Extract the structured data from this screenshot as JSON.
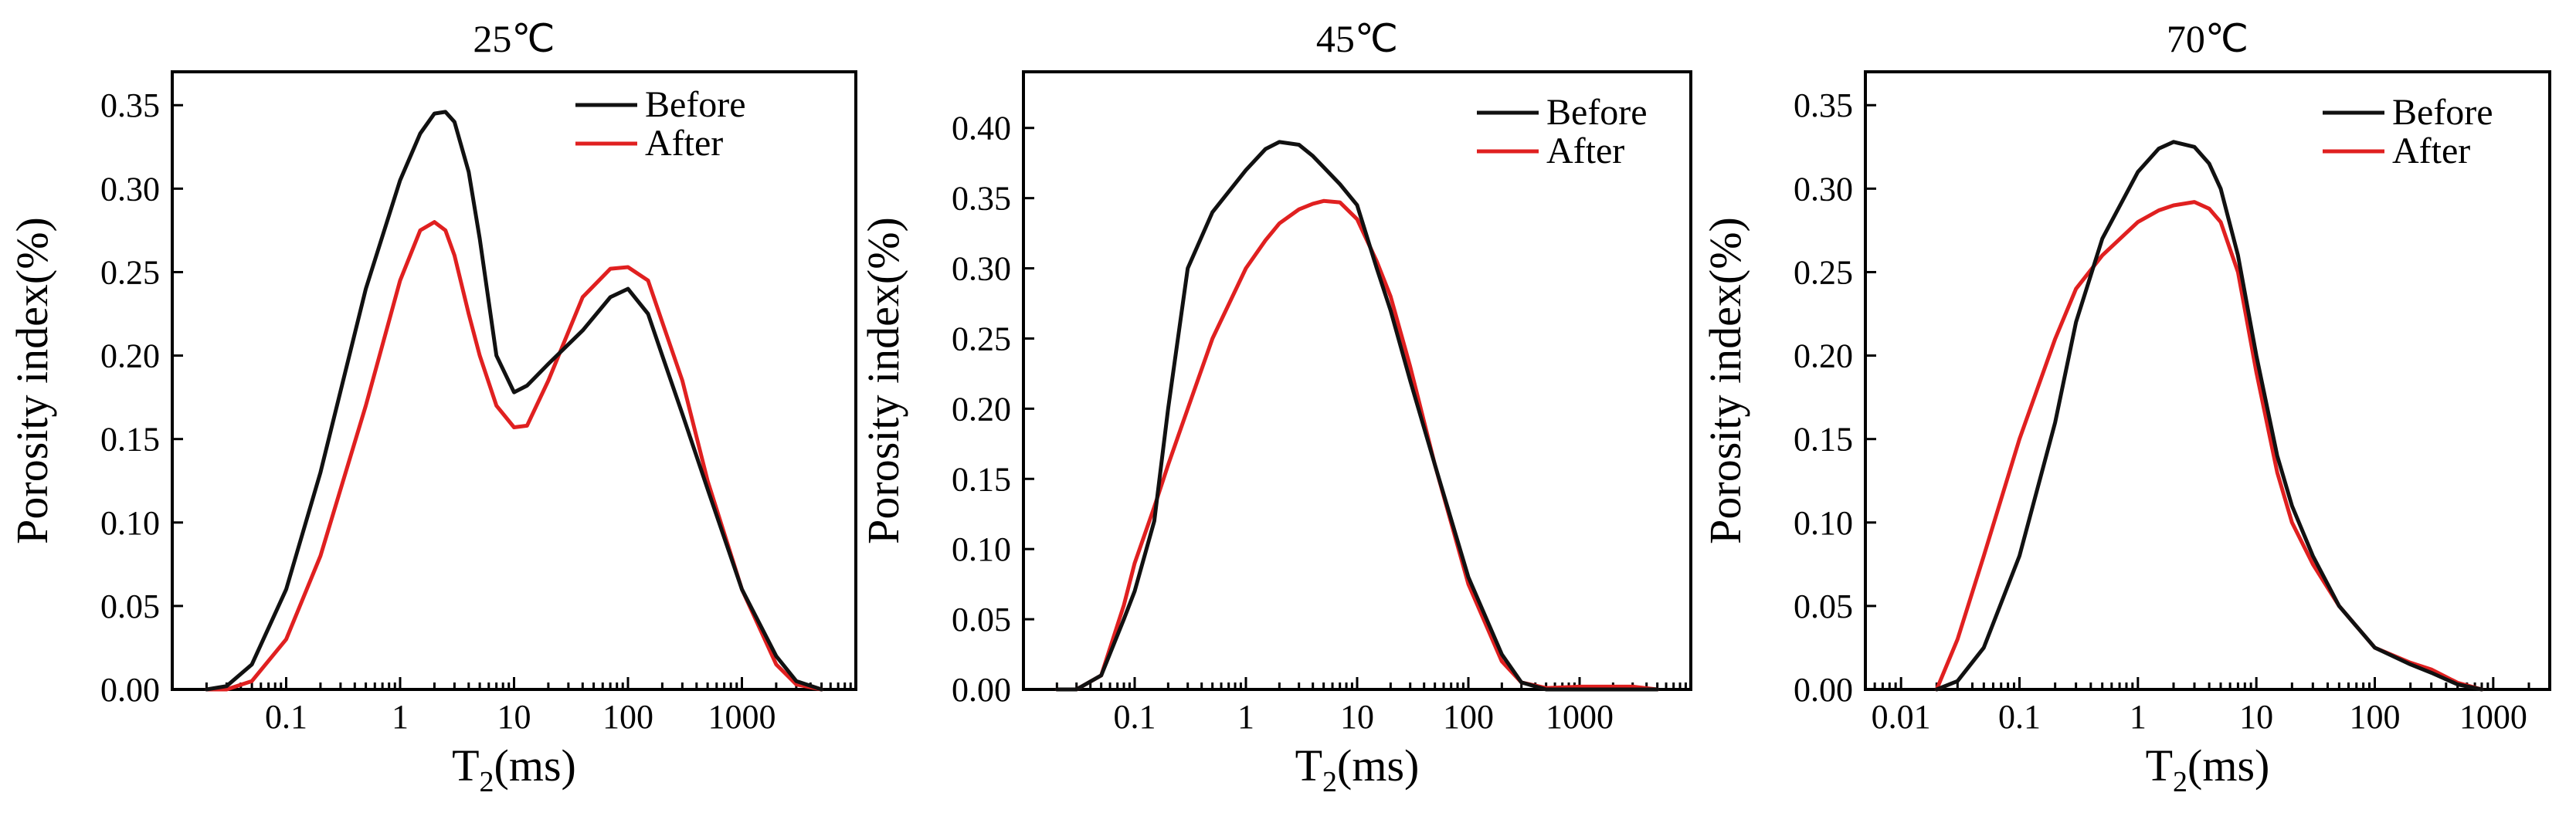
{
  "chart_data": [
    {
      "type": "line",
      "title": "25℃",
      "xlabel": {
        "main": "T",
        "sub": "2",
        "rest": "(ms)"
      },
      "ylabel": "Porosity index(%)",
      "xscale": "log",
      "xlim": [
        0.01,
        10000
      ],
      "ylim": [
        0,
        0.37
      ],
      "xticks": [
        0.1,
        1,
        10,
        100,
        1000
      ],
      "xtick_labels": [
        "0.1",
        "1",
        "10",
        "100",
        "1000"
      ],
      "yticks": [
        0,
        0.05,
        0.1,
        0.15,
        0.2,
        0.25,
        0.3,
        0.35
      ],
      "ytick_labels": [
        "0.00",
        "0.05",
        "0.10",
        "0.15",
        "0.20",
        "0.25",
        "0.30",
        "0.35"
      ],
      "legend": "top-right",
      "colors": {
        "Before": "#111111",
        "After": "#e02020"
      },
      "series": [
        {
          "name": "Before",
          "x": [
            0.02,
            0.03,
            0.05,
            0.1,
            0.2,
            0.5,
            1,
            1.5,
            2,
            2.5,
            3,
            4,
            5,
            7,
            10,
            13,
            20,
            40,
            70,
            100,
            150,
            200,
            300,
            500,
            1000,
            2000,
            3000,
            5000
          ],
          "y": [
            0,
            0.002,
            0.015,
            0.06,
            0.13,
            0.24,
            0.305,
            0.333,
            0.345,
            0.346,
            0.34,
            0.31,
            0.27,
            0.2,
            0.178,
            0.182,
            0.195,
            0.215,
            0.235,
            0.24,
            0.225,
            0.2,
            0.165,
            0.12,
            0.06,
            0.02,
            0.005,
            0
          ]
        },
        {
          "name": "After",
          "x": [
            0.02,
            0.03,
            0.05,
            0.1,
            0.2,
            0.5,
            1,
            1.5,
            2,
            2.5,
            3,
            4,
            5,
            7,
            10,
            13,
            20,
            40,
            70,
            100,
            150,
            200,
            300,
            500,
            1000,
            2000,
            3000,
            5000
          ],
          "y": [
            0,
            0,
            0.005,
            0.03,
            0.08,
            0.17,
            0.245,
            0.275,
            0.28,
            0.275,
            0.26,
            0.225,
            0.2,
            0.17,
            0.157,
            0.158,
            0.185,
            0.235,
            0.252,
            0.253,
            0.245,
            0.22,
            0.185,
            0.125,
            0.06,
            0.015,
            0.003,
            0
          ]
        }
      ]
    },
    {
      "type": "line",
      "title": "45℃",
      "xlabel": {
        "main": "T",
        "sub": "2",
        "rest": "(ms)"
      },
      "ylabel": "Porosity index(%)",
      "xscale": "log",
      "xlim": [
        0.01,
        10000
      ],
      "ylim": [
        0,
        0.44
      ],
      "xticks": [
        0.1,
        1,
        10,
        100,
        1000
      ],
      "xtick_labels": [
        "0.1",
        "1",
        "10",
        "100",
        "1000"
      ],
      "yticks": [
        0,
        0.05,
        0.1,
        0.15,
        0.2,
        0.25,
        0.3,
        0.35,
        0.4
      ],
      "ytick_labels": [
        "0.00",
        "0.05",
        "0.10",
        "0.15",
        "0.20",
        "0.25",
        "0.30",
        "0.35",
        "0.40"
      ],
      "legend": "top-right",
      "colors": {
        "Before": "#111111",
        "After": "#e02020"
      },
      "series": [
        {
          "name": "Before",
          "x": [
            0.02,
            0.03,
            0.05,
            0.08,
            0.1,
            0.15,
            0.2,
            0.3,
            0.5,
            1,
            1.5,
            2,
            3,
            4,
            5,
            7,
            10,
            15,
            20,
            30,
            50,
            100,
            200,
            300,
            500,
            1000,
            3000,
            5000
          ],
          "y": [
            0,
            0,
            0.01,
            0.05,
            0.07,
            0.12,
            0.2,
            0.3,
            0.34,
            0.37,
            0.385,
            0.39,
            0.388,
            0.38,
            0.372,
            0.36,
            0.345,
            0.3,
            0.27,
            0.22,
            0.16,
            0.08,
            0.025,
            0.005,
            0,
            0,
            0,
            0
          ]
        },
        {
          "name": "After",
          "x": [
            0.02,
            0.03,
            0.05,
            0.08,
            0.1,
            0.15,
            0.2,
            0.3,
            0.5,
            1,
            1.5,
            2,
            3,
            4,
            5,
            7,
            10,
            15,
            20,
            30,
            50,
            100,
            200,
            300,
            500,
            1000,
            3000,
            5000
          ],
          "y": [
            0,
            0,
            0.01,
            0.06,
            0.09,
            0.13,
            0.16,
            0.2,
            0.25,
            0.3,
            0.32,
            0.332,
            0.342,
            0.346,
            0.348,
            0.347,
            0.335,
            0.305,
            0.28,
            0.23,
            0.16,
            0.075,
            0.02,
            0.005,
            0.001,
            0.002,
            0.002,
            0
          ]
        }
      ]
    },
    {
      "type": "line",
      "title": "70℃",
      "xlabel": {
        "main": "T",
        "sub": "2",
        "rest": "(ms)"
      },
      "ylabel": "Porosity index(%)",
      "xscale": "log",
      "xlim": [
        0.005,
        3000
      ],
      "ylim": [
        0,
        0.37
      ],
      "xticks": [
        0.01,
        0.1,
        1,
        10,
        100,
        1000
      ],
      "xtick_labels": [
        "0.01",
        "0.1",
        "1",
        "10",
        "100",
        "1000"
      ],
      "yticks": [
        0,
        0.05,
        0.1,
        0.15,
        0.2,
        0.25,
        0.3,
        0.35
      ],
      "ytick_labels": [
        "0.00",
        "0.05",
        "0.10",
        "0.15",
        "0.20",
        "0.25",
        "0.30",
        "0.35"
      ],
      "legend": "top-right",
      "colors": {
        "Before": "#111111",
        "After": "#e02020"
      },
      "series": [
        {
          "name": "Before",
          "x": [
            0.02,
            0.03,
            0.05,
            0.1,
            0.2,
            0.3,
            0.5,
            1,
            1.5,
            2,
            3,
            4,
            5,
            7,
            10,
            15,
            20,
            30,
            50,
            100,
            200,
            300,
            500,
            800
          ],
          "y": [
            0,
            0.005,
            0.025,
            0.08,
            0.16,
            0.22,
            0.27,
            0.31,
            0.324,
            0.328,
            0.325,
            0.315,
            0.3,
            0.26,
            0.2,
            0.14,
            0.11,
            0.08,
            0.05,
            0.025,
            0.015,
            0.01,
            0.003,
            0
          ]
        },
        {
          "name": "After",
          "x": [
            0.02,
            0.03,
            0.05,
            0.1,
            0.2,
            0.3,
            0.5,
            1,
            1.5,
            2,
            3,
            4,
            5,
            7,
            10,
            15,
            20,
            30,
            50,
            100,
            200,
            300,
            500,
            800
          ],
          "y": [
            0,
            0.03,
            0.08,
            0.15,
            0.21,
            0.24,
            0.26,
            0.28,
            0.287,
            0.29,
            0.292,
            0.288,
            0.28,
            0.25,
            0.19,
            0.13,
            0.1,
            0.075,
            0.05,
            0.025,
            0.016,
            0.012,
            0.004,
            0
          ]
        }
      ]
    }
  ]
}
